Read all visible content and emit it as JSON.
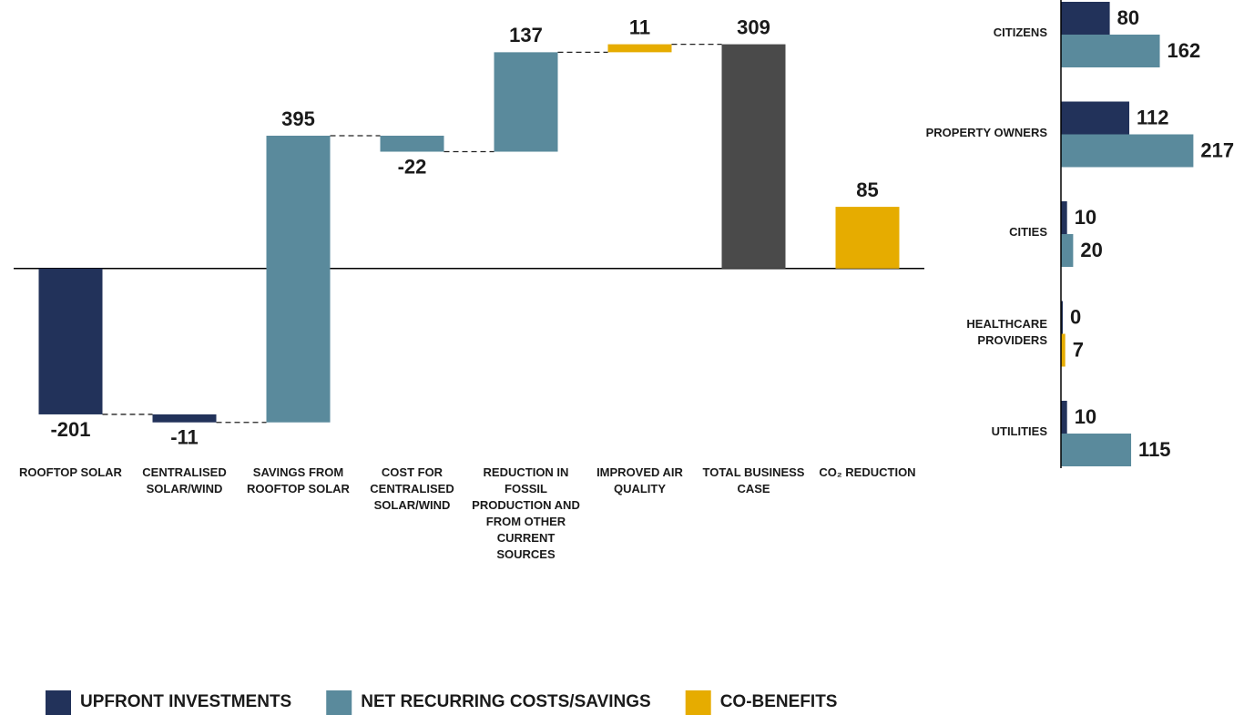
{
  "chart_data": [
    {
      "type": "waterfall",
      "categories": [
        "ROOFTOP SOLAR",
        "CENTRALISED SOLAR/WIND",
        "SAVINGS FROM ROOFTOP SOLAR",
        "COST FOR CENTRALISED SOLAR/WIND",
        "REDUCTION IN FOSSIL PRODUCTION AND FROM OTHER CURRENT SOURCES",
        "IMPROVED AIR QUALITY",
        "TOTAL BUSINESS CASE",
        "CO₂ REDUCTION"
      ],
      "values": [
        -201,
        -11,
        395,
        -22,
        137,
        11,
        309,
        85
      ],
      "measures": [
        "relative",
        "relative",
        "relative",
        "relative",
        "relative",
        "relative",
        "total",
        "absolute"
      ],
      "colors": [
        "#22325a",
        "#22325a",
        "#5a8a9c",
        "#5a8a9c",
        "#5a8a9c",
        "#e6ac00",
        "#4a4a4a",
        "#e6ac00"
      ],
      "ylim": [
        -250,
        370
      ],
      "legend": [
        {
          "name": "UPFRONT INVESTMENTS",
          "color": "#22325a"
        },
        {
          "name": "NET RECURRING COSTS/SAVINGS",
          "color": "#5a8a9c"
        },
        {
          "name": "CO-BENEFITS",
          "color": "#e6ac00"
        }
      ]
    },
    {
      "type": "hbar",
      "categories": [
        "CITIZENS",
        "PROPERTY OWNERS",
        "CITIES",
        "HEALTHCARE PROVIDERS",
        "UTILITIES"
      ],
      "xlim": [
        0,
        300
      ],
      "series": [
        {
          "color": "#22325a",
          "values": [
            80,
            112,
            10,
            0,
            10
          ]
        },
        {
          "colors": [
            "#5a8a9c",
            "#5a8a9c",
            "#5a8a9c",
            "#e6ac00",
            "#5a8a9c"
          ],
          "values": [
            162,
            217,
            20,
            7,
            115
          ]
        }
      ]
    }
  ]
}
